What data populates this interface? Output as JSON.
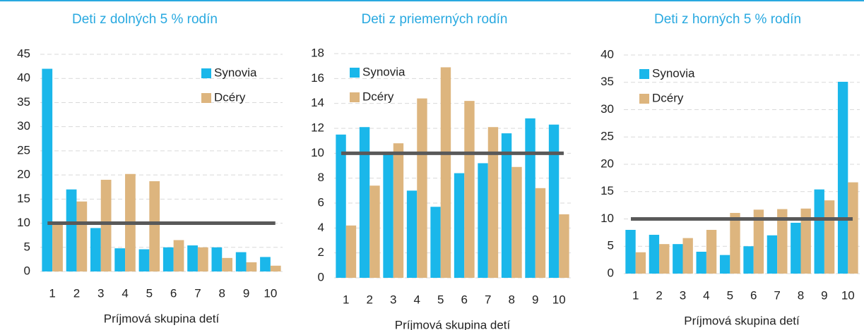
{
  "chart_data": [
    {
      "type": "bar",
      "title": "Deti z dolných 5 % rodín",
      "xlabel": "Príjmová skupina detí",
      "categories": [
        "1",
        "2",
        "3",
        "4",
        "5",
        "6",
        "7",
        "8",
        "9",
        "10"
      ],
      "series": [
        {
          "name": "Synovia",
          "color": "#1ab7ea",
          "values": [
            42,
            17,
            9,
            4.8,
            4.6,
            5,
            5.4,
            5,
            4,
            3
          ]
        },
        {
          "name": "Dcéry",
          "color": "#ddb57e",
          "values": [
            10,
            14.5,
            19,
            20.2,
            18.7,
            6.5,
            5,
            2.8,
            1.9,
            1.2
          ]
        }
      ],
      "ylim": [
        0,
        45
      ],
      "yticks": [
        0,
        5,
        10,
        15,
        20,
        25,
        30,
        35,
        40,
        45
      ],
      "grid": true,
      "legend": "upper right",
      "reference_line": {
        "value": 10,
        "color": "#595959"
      }
    },
    {
      "type": "bar",
      "title": "Deti z priemerných rodín",
      "xlabel": "Príjmová skupina detí",
      "categories": [
        "1",
        "2",
        "3",
        "4",
        "5",
        "6",
        "7",
        "8",
        "9",
        "10"
      ],
      "series": [
        {
          "name": "Synovia",
          "color": "#1ab7ea",
          "values": [
            11.5,
            12.1,
            10,
            7,
            5.7,
            8.4,
            9.2,
            11.6,
            12.8,
            12.3
          ]
        },
        {
          "name": "Dcéry",
          "color": "#ddb57e",
          "values": [
            4.2,
            7.4,
            10.8,
            14.4,
            16.9,
            14.2,
            12.1,
            8.9,
            7.2,
            5.1
          ]
        }
      ],
      "ylim": [
        0,
        18
      ],
      "yticks": [
        0,
        2,
        4,
        6,
        8,
        10,
        12,
        14,
        16,
        18
      ],
      "grid": true,
      "legend": "upper left",
      "reference_line": {
        "value": 10,
        "color": "#595959"
      }
    },
    {
      "type": "bar",
      "title": "Deti z horných 5 % rodín",
      "xlabel": "Príjmová skupina detí",
      "categories": [
        "1",
        "2",
        "3",
        "4",
        "5",
        "6",
        "7",
        "8",
        "9",
        "10"
      ],
      "series": [
        {
          "name": "Synovia",
          "color": "#1ab7ea",
          "values": [
            8,
            7.1,
            5.4,
            4,
            3.4,
            5,
            7,
            9.3,
            15.4,
            35.1
          ]
        },
        {
          "name": "Dcéry",
          "color": "#ddb57e",
          "values": [
            3.9,
            5.4,
            6.5,
            8,
            11.1,
            11.7,
            11.8,
            11.9,
            13.4,
            16.7
          ]
        }
      ],
      "ylim": [
        0,
        40
      ],
      "yticks": [
        0,
        5,
        10,
        15,
        20,
        25,
        30,
        35,
        40
      ],
      "grid": true,
      "legend": "upper left",
      "reference_line": {
        "value": 10,
        "color": "#595959"
      }
    }
  ]
}
